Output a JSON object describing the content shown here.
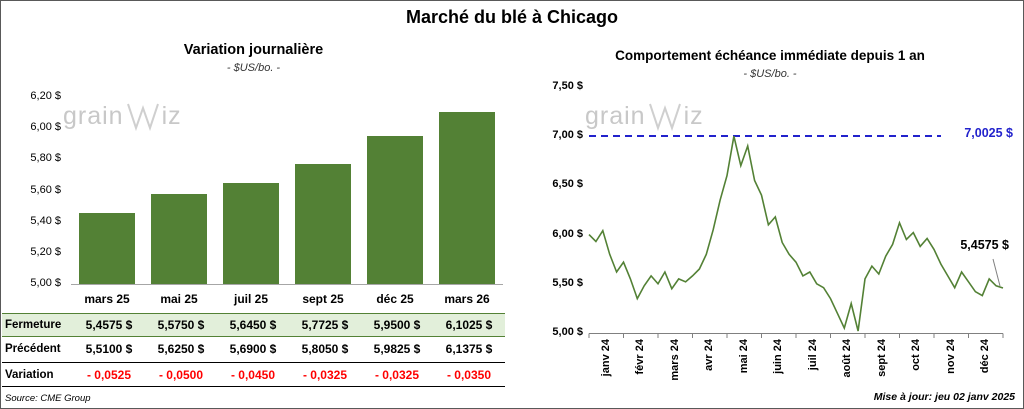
{
  "title": "Marché du blé à Chicago",
  "watermark": {
    "pre": "grain",
    "post": "iz"
  },
  "left": {
    "title": "Variation journalière",
    "subtitle": "- $US/bo. -",
    "source": "Source: CME Group",
    "table": {
      "rows": [
        {
          "label": "Fermeture",
          "values": [
            "5,4575 $",
            "5,5750 $",
            "5,6450 $",
            "5,7725 $",
            "5,9500 $",
            "6,1025 $"
          ]
        },
        {
          "label": "Précédent",
          "values": [
            "5,5100 $",
            "5,6250 $",
            "5,6900 $",
            "5,8050 $",
            "5,9825 $",
            "6,1375 $"
          ]
        },
        {
          "label": "Variation",
          "values": [
            "- 0,0525",
            "- 0,0500",
            "- 0,0450",
            "- 0,0325",
            "- 0,0325",
            "- 0,0350"
          ]
        }
      ]
    }
  },
  "right": {
    "title": "Comportement échéance immédiate depuis 1 an",
    "subtitle": "- $US/bo. -",
    "updated": "Mise à jour: jeu 02 janv 2025",
    "high_label": "7,0025 $",
    "last_label": "5,4575 $"
  },
  "chart_data": [
    {
      "type": "bar",
      "title": "Variation journalière",
      "subtitle": "- $US/bo. -",
      "categories": [
        "mars 25",
        "mai 25",
        "juil 25",
        "sept 25",
        "déc 25",
        "mars 26"
      ],
      "values": [
        5.4575,
        5.575,
        5.645,
        5.7725,
        5.95,
        6.1025
      ],
      "previous": [
        5.51,
        5.625,
        5.69,
        5.805,
        5.9825,
        6.1375
      ],
      "variation": [
        -0.0525,
        -0.05,
        -0.045,
        -0.0325,
        -0.0325,
        -0.035
      ],
      "ylim": [
        5.0,
        6.2
      ],
      "yticks": [
        5.0,
        5.2,
        5.4,
        5.6,
        5.8,
        6.0,
        6.2
      ],
      "ytick_labels": [
        "5,00 $",
        "5,20 $",
        "5,40 $",
        "5,60 $",
        "5,80 $",
        "6,00 $",
        "6,20 $"
      ],
      "bar_color": "#538135",
      "grid": false,
      "legend": false
    },
    {
      "type": "line",
      "title": "Comportement échéance immédiate depuis 1 an",
      "subtitle": "- $US/bo. -",
      "x_labels": [
        "janv 24",
        "févr 24",
        "mars 24",
        "avr 24",
        "mai 24",
        "juin 24",
        "juil 24",
        "août 24",
        "sept 24",
        "oct 24",
        "nov 24",
        "déc 24"
      ],
      "values": [
        6.0,
        5.93,
        6.04,
        5.8,
        5.62,
        5.72,
        5.55,
        5.35,
        5.48,
        5.58,
        5.5,
        5.62,
        5.45,
        5.55,
        5.52,
        5.58,
        5.65,
        5.8,
        6.05,
        6.35,
        6.6,
        7.0,
        6.7,
        6.9,
        6.55,
        6.4,
        6.1,
        6.18,
        5.92,
        5.8,
        5.72,
        5.58,
        5.62,
        5.5,
        5.46,
        5.35,
        5.2,
        5.05,
        5.3,
        5.02,
        5.55,
        5.68,
        5.6,
        5.78,
        5.9,
        6.12,
        5.95,
        6.02,
        5.88,
        5.96,
        5.85,
        5.7,
        5.58,
        5.46,
        5.62,
        5.52,
        5.42,
        5.38,
        5.55,
        5.48,
        5.4575
      ],
      "ylim": [
        5.0,
        7.5
      ],
      "yticks": [
        5.0,
        5.5,
        6.0,
        6.5,
        7.0,
        7.5
      ],
      "ytick_labels": [
        "5,00 $",
        "5,50 $",
        "6,00 $",
        "6,50 $",
        "7,00 $",
        "7,50 $"
      ],
      "reference": {
        "value": 7.0025,
        "label": "7,0025 $",
        "color": "#2222cc",
        "style": "dashed"
      },
      "last": {
        "value": 5.4575,
        "label": "5,4575 $"
      },
      "line_color": "#538135",
      "grid": false,
      "legend": false
    }
  ]
}
